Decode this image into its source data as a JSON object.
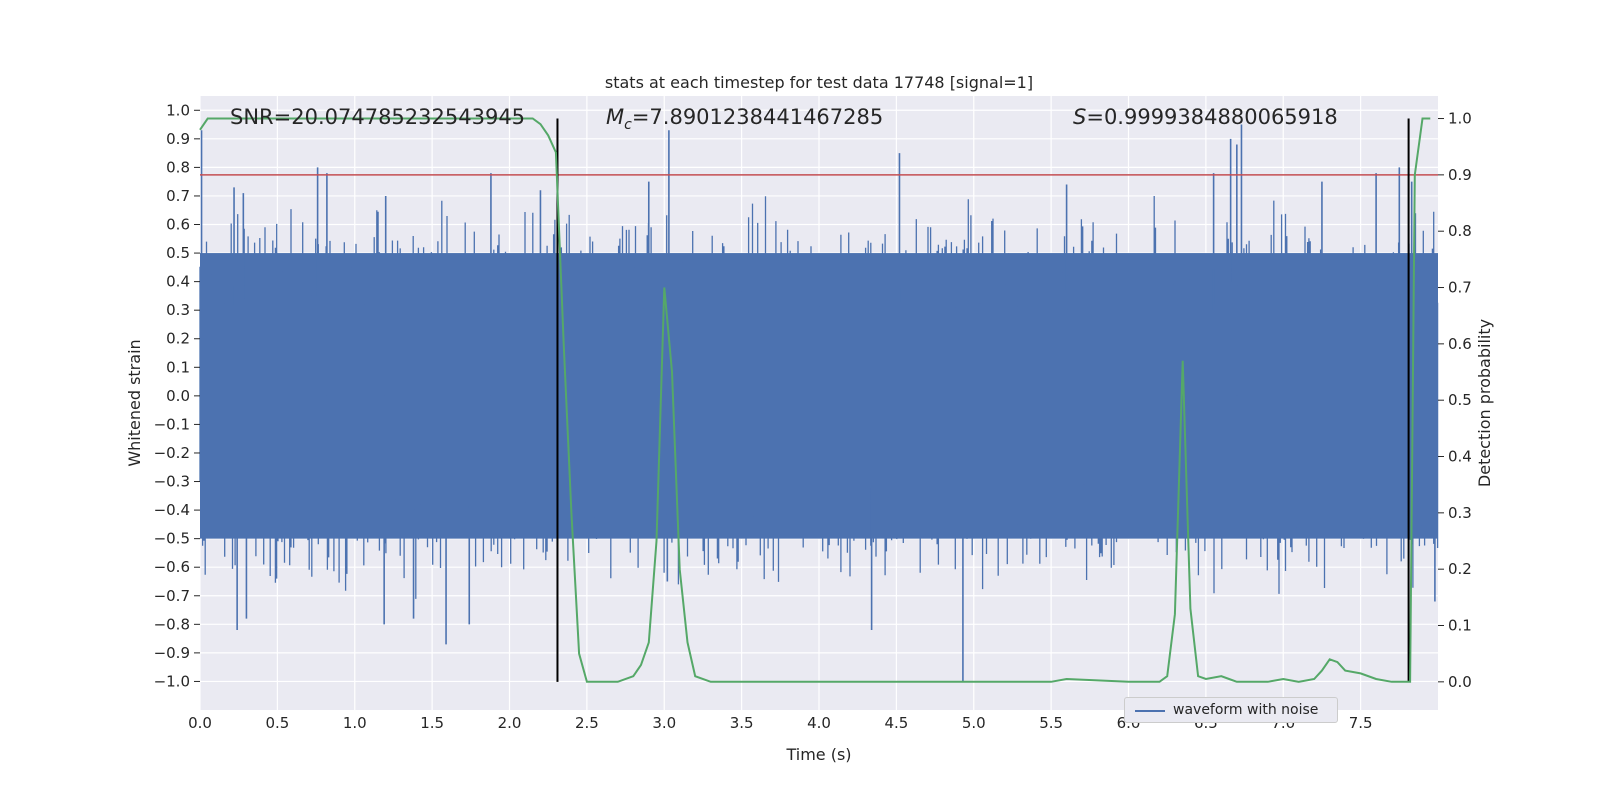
{
  "chart_data": {
    "type": "line",
    "title": "stats at each timestep for test data 17748 [signal=1]",
    "xlabel": "Time (s)",
    "ylabel": "Whitened strain",
    "y2label": "Detection probability",
    "xlim": [
      0.0,
      8.0
    ],
    "ylim": [
      -1.1,
      1.05
    ],
    "y2lim": [
      -0.05,
      1.04
    ],
    "x_ticks": [
      "0.0",
      "0.5",
      "1.0",
      "1.5",
      "2.0",
      "2.5",
      "3.0",
      "3.5",
      "4.0",
      "4.5",
      "5.0",
      "5.5",
      "6.0",
      "6.5",
      "7.0",
      "7.5"
    ],
    "y_ticks": [
      "1.0",
      "0.9",
      "0.8",
      "0.7",
      "0.6",
      "0.5",
      "0.4",
      "0.3",
      "0.2",
      "0.1",
      "0.0",
      "−0.1",
      "−0.2",
      "−0.3",
      "−0.4",
      "−0.5",
      "−0.6",
      "−0.7",
      "−0.8",
      "−0.9",
      "−1.0"
    ],
    "y2_ticks": [
      "1.0",
      "0.9",
      "0.8",
      "0.7",
      "0.6",
      "0.5",
      "0.4",
      "0.3",
      "0.2",
      "0.1",
      "0.0"
    ],
    "annotations": {
      "snr": "SNR=20.074785232543945",
      "mc_symbol": "M",
      "mc_sub": "c",
      "mc_value": "=7.8901238441467285",
      "s_symbol": "S",
      "s_value": "=0.9999384880065918"
    },
    "vertical_lines": [
      2.31,
      7.81
    ],
    "threshold": 0.9,
    "legend": "waveform with noise",
    "series": [
      {
        "name": "waveform with noise",
        "axis": "left",
        "color": "#4c72b0",
        "envelope_upper": 0.5,
        "envelope_lower": -0.5,
        "spikes": [
          [
            0.01,
            0.93
          ],
          [
            0.22,
            0.73
          ],
          [
            0.24,
            -0.82
          ],
          [
            0.28,
            0.71
          ],
          [
            0.3,
            -0.78
          ],
          [
            0.76,
            0.8
          ],
          [
            0.82,
            0.78
          ],
          [
            1.2,
            0.7
          ],
          [
            1.19,
            -0.8
          ],
          [
            1.38,
            -0.78
          ],
          [
            1.59,
            -0.87
          ],
          [
            1.88,
            0.78
          ],
          [
            1.74,
            -0.8
          ],
          [
            2.2,
            0.72
          ],
          [
            2.9,
            0.75
          ],
          [
            3.03,
            0.93
          ],
          [
            3.02,
            -0.65
          ],
          [
            4.52,
            0.85
          ],
          [
            4.34,
            -0.82
          ],
          [
            4.93,
            -1.0
          ],
          [
            5.6,
            0.74
          ],
          [
            6.55,
            0.78
          ],
          [
            6.66,
            0.9
          ],
          [
            6.7,
            0.88
          ],
          [
            6.73,
            0.95
          ],
          [
            7.25,
            0.75
          ],
          [
            7.6,
            0.78
          ],
          [
            7.75,
            0.8
          ],
          [
            7.83,
            0.75
          ],
          [
            7.98,
            -0.72
          ]
        ]
      },
      {
        "name": "detection probability",
        "axis": "right",
        "color": "#55a868",
        "x": [
          0.0,
          0.05,
          0.1,
          0.5,
          1.0,
          1.5,
          2.0,
          2.1,
          2.15,
          2.2,
          2.25,
          2.3,
          2.35,
          2.4,
          2.45,
          2.5,
          2.6,
          2.7,
          2.8,
          2.85,
          2.9,
          2.95,
          3.0,
          3.05,
          3.1,
          3.15,
          3.2,
          3.3,
          3.5,
          4.0,
          4.5,
          4.9,
          5.0,
          5.5,
          5.6,
          6.0,
          6.2,
          6.25,
          6.3,
          6.35,
          6.4,
          6.45,
          6.5,
          6.6,
          6.65,
          6.7,
          6.8,
          6.9,
          7.0,
          7.1,
          7.2,
          7.25,
          7.3,
          7.35,
          7.4,
          7.5,
          7.6,
          7.7,
          7.75,
          7.8,
          7.82,
          7.85,
          7.9,
          7.95
        ],
        "y": [
          0.98,
          1.0,
          1.0,
          1.0,
          1.0,
          1.0,
          1.0,
          1.0,
          1.0,
          0.99,
          0.97,
          0.94,
          0.6,
          0.3,
          0.05,
          0.0,
          0.0,
          0.0,
          0.01,
          0.03,
          0.07,
          0.25,
          0.7,
          0.55,
          0.2,
          0.07,
          0.01,
          0.0,
          0.0,
          0.0,
          0.0,
          0.0,
          0.0,
          0.0,
          0.005,
          0.0,
          0.0,
          0.01,
          0.12,
          0.57,
          0.13,
          0.01,
          0.005,
          0.01,
          0.005,
          0.0,
          0.0,
          0.0,
          0.005,
          0.0,
          0.005,
          0.02,
          0.04,
          0.035,
          0.02,
          0.015,
          0.005,
          0.0,
          0.0,
          0.0,
          0.0,
          0.9,
          1.0,
          1.0
        ]
      }
    ]
  }
}
